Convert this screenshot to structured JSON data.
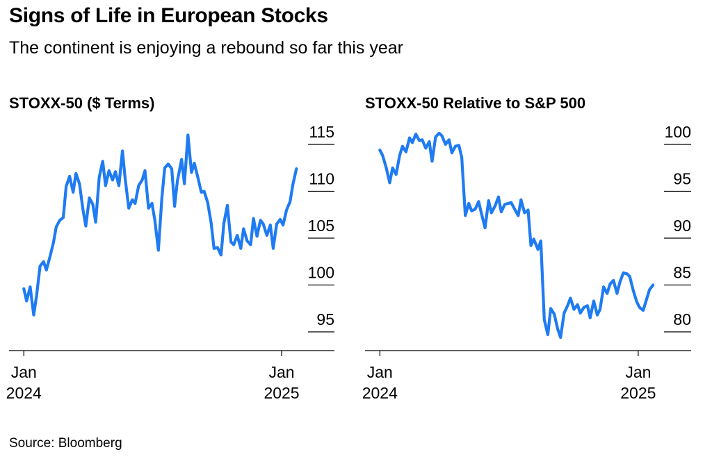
{
  "header": {
    "title": "Signs of Life in European Stocks",
    "subtitle": "The continent is enjoying a rebound so far this year"
  },
  "footer": {
    "source": "Source: Bloomberg"
  },
  "colors": {
    "line": "#1f7bf2",
    "text": "#000000"
  },
  "chart_data": [
    {
      "type": "line",
      "title": "STOXX-50 ($ Terms)",
      "xlabel": "",
      "ylabel": "",
      "x_ticks": [
        {
          "x": "2024-01-01",
          "line1": "Jan",
          "line2": "2024"
        },
        {
          "x": "2025-01-01",
          "line1": "Jan",
          "line2": "2025"
        }
      ],
      "y_ticks": [
        95,
        100,
        105,
        110,
        115
      ],
      "xlim": [
        "2023-12-11",
        "2025-03-17"
      ],
      "ylim": [
        93,
        117
      ],
      "grid": false,
      "y_axis_side": "right",
      "series": [
        {
          "x": [
            "2024-01-01",
            "2024-01-05",
            "2024-01-10",
            "2024-01-15",
            "2024-01-19",
            "2024-01-24",
            "2024-01-29",
            "2024-02-02",
            "2024-02-07",
            "2024-02-12",
            "2024-02-16",
            "2024-02-21",
            "2024-02-26",
            "2024-03-01",
            "2024-03-06",
            "2024-03-11",
            "2024-03-15",
            "2024-03-20",
            "2024-03-25",
            "2024-03-29",
            "2024-04-03",
            "2024-04-08",
            "2024-04-12",
            "2024-04-17",
            "2024-04-22",
            "2024-04-26",
            "2024-05-01",
            "2024-05-06",
            "2024-05-10",
            "2024-05-15",
            "2024-05-20",
            "2024-05-24",
            "2024-05-29",
            "2024-06-03",
            "2024-06-07",
            "2024-06-12",
            "2024-06-17",
            "2024-06-21",
            "2024-06-26",
            "2024-07-01",
            "2024-07-05",
            "2024-07-10",
            "2024-07-15",
            "2024-07-19",
            "2024-07-24",
            "2024-07-29",
            "2024-08-02",
            "2024-08-06",
            "2024-08-12",
            "2024-08-16",
            "2024-08-21",
            "2024-08-26",
            "2024-08-30",
            "2024-09-04",
            "2024-09-09",
            "2024-09-13",
            "2024-09-18",
            "2024-09-23",
            "2024-09-27",
            "2024-10-02",
            "2024-10-07",
            "2024-10-11",
            "2024-10-16",
            "2024-10-21",
            "2024-10-25",
            "2024-10-30",
            "2024-11-04",
            "2024-11-08",
            "2024-11-13",
            "2024-11-18",
            "2024-11-22",
            "2024-11-27",
            "2024-12-02",
            "2024-12-06",
            "2024-12-11",
            "2024-12-16",
            "2024-12-20",
            "2024-12-25",
            "2024-12-30",
            "2025-01-03",
            "2025-01-08",
            "2025-01-13",
            "2025-01-17",
            "2025-01-22"
          ],
          "values": [
            99.6,
            98.3,
            99.8,
            96.8,
            98.8,
            102.0,
            102.5,
            101.6,
            103.0,
            104.5,
            106.2,
            106.9,
            107.2,
            110.5,
            111.6,
            109.9,
            111.9,
            110.8,
            108.0,
            106.3,
            109.3,
            108.6,
            106.7,
            111.5,
            113.2,
            110.6,
            112.2,
            111.2,
            112.1,
            110.6,
            114.3,
            111.3,
            108.2,
            109.1,
            108.7,
            110.6,
            111.2,
            112.2,
            108.2,
            108.7,
            106.9,
            103.7,
            109.3,
            112.5,
            112.9,
            112.4,
            108.4,
            111.1,
            113.4,
            110.8,
            116.0,
            112.0,
            113.0,
            111.5,
            109.9,
            110.0,
            108.8,
            106.6,
            103.9,
            104.0,
            103.2,
            106.6,
            108.5,
            104.6,
            104.3,
            105.3,
            103.9,
            106.0,
            104.7,
            104.3,
            107.1,
            105.2,
            106.9,
            106.5,
            105.3,
            106.4,
            103.9,
            106.5,
            107.0,
            106.4,
            108.0,
            108.9,
            110.7,
            112.4
          ]
        }
      ]
    },
    {
      "type": "line",
      "title": "STOXX-50 Relative to S&P 500",
      "xlabel": "",
      "ylabel": "",
      "x_ticks": [
        {
          "x": "2024-01-01",
          "line1": "Jan",
          "line2": "2024"
        },
        {
          "x": "2025-01-01",
          "line1": "Jan",
          "line2": "2025"
        }
      ],
      "y_ticks": [
        80,
        85,
        90,
        95,
        100
      ],
      "xlim": [
        "2023-12-11",
        "2025-03-17"
      ],
      "ylim": [
        78,
        102
      ],
      "grid": false,
      "y_axis_side": "right",
      "series": [
        {
          "x": [
            "2024-01-01",
            "2024-01-05",
            "2024-01-10",
            "2024-01-15",
            "2024-01-19",
            "2024-01-24",
            "2024-01-29",
            "2024-02-02",
            "2024-02-07",
            "2024-02-12",
            "2024-02-16",
            "2024-02-21",
            "2024-02-26",
            "2024-03-01",
            "2024-03-06",
            "2024-03-11",
            "2024-03-15",
            "2024-03-20",
            "2024-03-25",
            "2024-03-29",
            "2024-04-03",
            "2024-04-08",
            "2024-04-12",
            "2024-04-17",
            "2024-04-22",
            "2024-04-26",
            "2024-05-01",
            "2024-05-06",
            "2024-05-10",
            "2024-05-15",
            "2024-05-20",
            "2024-05-24",
            "2024-05-29",
            "2024-06-03",
            "2024-06-07",
            "2024-06-12",
            "2024-06-17",
            "2024-06-21",
            "2024-06-26",
            "2024-07-01",
            "2024-07-05",
            "2024-07-10",
            "2024-07-15",
            "2024-07-19",
            "2024-07-24",
            "2024-07-29",
            "2024-08-02",
            "2024-08-06",
            "2024-08-12",
            "2024-08-16",
            "2024-08-21",
            "2024-08-26",
            "2024-08-30",
            "2024-09-04",
            "2024-09-09",
            "2024-09-13",
            "2024-09-18",
            "2024-09-23",
            "2024-09-27",
            "2024-10-02",
            "2024-10-07",
            "2024-10-11",
            "2024-10-16",
            "2024-10-21",
            "2024-10-25",
            "2024-10-30",
            "2024-11-04",
            "2024-11-08",
            "2024-11-13",
            "2024-11-18",
            "2024-11-22",
            "2024-11-27",
            "2024-12-02",
            "2024-12-06",
            "2024-12-11",
            "2024-12-16",
            "2024-12-20",
            "2024-12-25",
            "2024-12-30",
            "2025-01-03",
            "2025-01-08",
            "2025-01-13",
            "2025-01-17",
            "2025-01-22"
          ],
          "values": [
            99.4,
            98.8,
            97.5,
            95.9,
            97.5,
            96.8,
            98.8,
            99.8,
            99.2,
            100.7,
            100.2,
            101.1,
            100.4,
            100.5,
            99.6,
            100.3,
            98.2,
            100.8,
            101.2,
            100.9,
            100.0,
            100.5,
            99.1,
            99.8,
            99.9,
            98.6,
            92.4,
            93.7,
            92.9,
            93.1,
            93.9,
            92.6,
            91.1,
            94.0,
            92.7,
            93.4,
            94.4,
            92.8,
            93.6,
            93.7,
            93.8,
            93.1,
            92.4,
            94.1,
            92.7,
            93.0,
            89.2,
            89.9,
            88.8,
            89.7,
            81.3,
            79.7,
            82.5,
            81.9,
            80.3,
            79.4,
            82.0,
            82.8,
            83.6,
            82.4,
            82.9,
            82.0,
            82.6,
            82.8,
            81.5,
            83.3,
            81.8,
            82.4,
            84.8,
            84.1,
            85.1,
            85.5,
            84.1,
            85.3,
            86.3,
            86.2,
            85.9,
            84.4,
            83.2,
            82.6,
            82.3,
            83.5,
            84.5,
            85.0
          ]
        }
      ]
    }
  ]
}
